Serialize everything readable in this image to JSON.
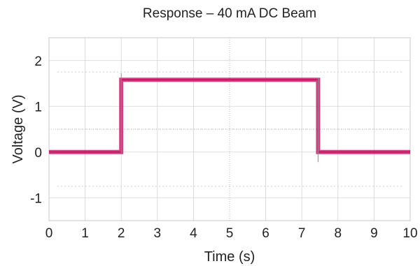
{
  "chart_data": {
    "type": "line",
    "title": "Response – 40 mA DC Beam",
    "xlabel": "Time (s)",
    "ylabel": "Voltage (V)",
    "xlim": [
      0,
      10
    ],
    "ylim": [
      -1.5,
      2.5
    ],
    "xticks": [
      0,
      1,
      2,
      3,
      4,
      5,
      6,
      7,
      8,
      9,
      10
    ],
    "xtick_labels": [
      "0",
      "1",
      "2",
      "3",
      "4",
      "5",
      "6",
      "7",
      "8",
      "9",
      "10"
    ],
    "yticks": [
      -1,
      0,
      1,
      2
    ],
    "ytick_labels": [
      "-1",
      "0",
      "1",
      "2"
    ],
    "grid": true,
    "series": [
      {
        "color": "#d6196e",
        "x": [
          0,
          2.0,
          2.0,
          7.45,
          7.45,
          10
        ],
        "y": [
          0.0,
          0.0,
          1.58,
          1.58,
          0.0,
          0.0
        ]
      }
    ]
  }
}
